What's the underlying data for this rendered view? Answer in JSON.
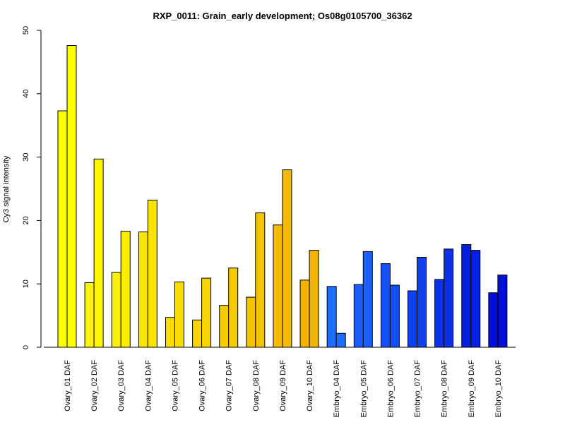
{
  "chart_data": {
    "type": "bar",
    "title": "RXP_0011: Grain_early development; Os08g0105700_36362",
    "xlabel": "",
    "ylabel": "Cy3 signal intensity",
    "ylim": [
      0,
      50
    ],
    "yticks": [
      0,
      10,
      20,
      30,
      40,
      50
    ],
    "grid": false,
    "legend": "none",
    "categories": [
      "Ovary_01 DAF",
      "Ovary_02 DAF",
      "Ovary_03 DAF",
      "Ovary_04 DAF",
      "Ovary_05 DAF",
      "Ovary_06 DAF",
      "Ovary_07 DAF",
      "Ovary_08 DAF",
      "Ovary_09 DAF",
      "Ovary_10 DAF",
      "Embryo_04 DAF",
      "Embryo_05 DAF",
      "Embryo_06 DAF",
      "Embryo_07 DAF",
      "Embryo_08 DAF",
      "Embryo_09 DAF",
      "Embryo_10 DAF"
    ],
    "series": [
      {
        "values": [
          37.3,
          10.2,
          11.8,
          18.2,
          4.7,
          4.3,
          6.6,
          7.9,
          19.3,
          10.6,
          9.6,
          9.9,
          13.2,
          8.9,
          10.7,
          16.2,
          8.6
        ]
      },
      {
        "values": [
          47.6,
          29.7,
          18.3,
          23.2,
          10.3,
          10.9,
          12.5,
          21.2,
          28.0,
          15.3,
          2.2,
          15.1,
          9.8,
          14.2,
          15.5,
          15.3,
          11.4
        ]
      }
    ],
    "colors": [
      "#ffff00",
      "#fdf600",
      "#fcee00",
      "#fbe500",
      "#f9dd00",
      "#f8d400",
      "#f6cb00",
      "#f5c300",
      "#f4ba00",
      "#f2b200",
      "#1e6eff",
      "#1a5fff",
      "#1450f8",
      "#0f40f0",
      "#0a30e8",
      "#0520e0",
      "#0010d8"
    ]
  }
}
